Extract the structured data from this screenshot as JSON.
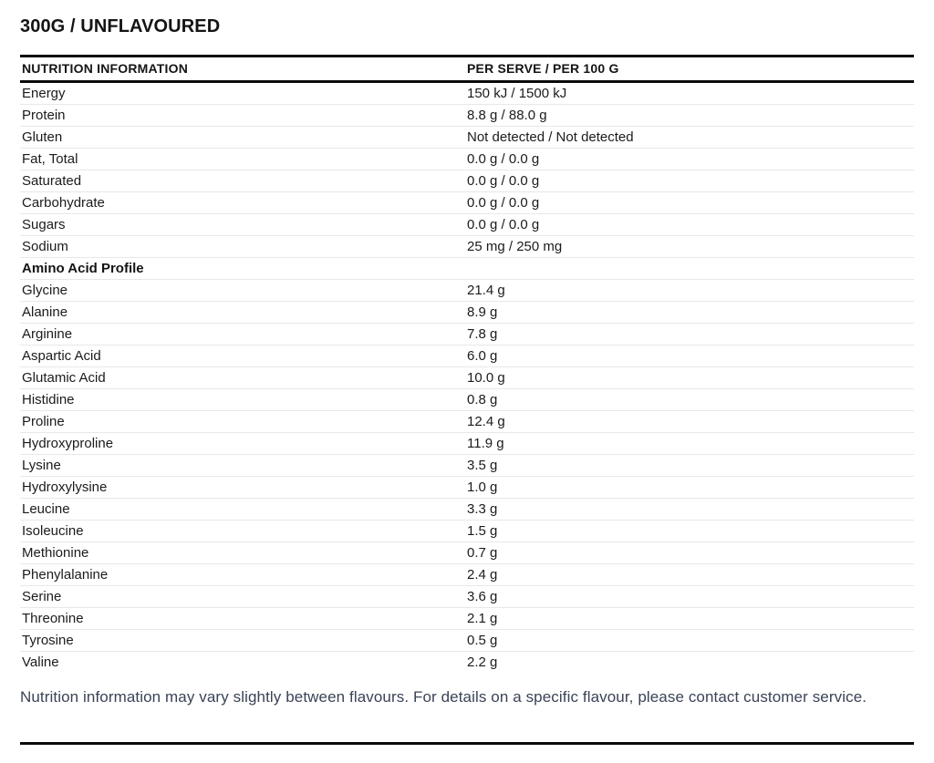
{
  "title": "300G / UNFLAVOURED",
  "table": {
    "headers": [
      "NUTRITION INFORMATION",
      "PER SERVE / PER 100 G"
    ],
    "rows": [
      {
        "label": "Energy",
        "value": "150 kJ / 1500 kJ",
        "section": false
      },
      {
        "label": "Protein",
        "value": "8.8 g / 88.0 g",
        "section": false
      },
      {
        "label": "Gluten",
        "value": "Not detected / Not detected",
        "section": false
      },
      {
        "label": "Fat, Total",
        "value": "0.0 g / 0.0 g",
        "section": false
      },
      {
        "label": "Saturated",
        "value": "0.0 g / 0.0 g",
        "section": false
      },
      {
        "label": "Carbohydrate",
        "value": "0.0 g / 0.0 g",
        "section": false
      },
      {
        "label": "Sugars",
        "value": "0.0 g / 0.0 g",
        "section": false
      },
      {
        "label": "Sodium",
        "value": "25 mg / 250 mg",
        "section": false
      },
      {
        "label": "Amino Acid Profile",
        "value": "",
        "section": true
      },
      {
        "label": "Glycine",
        "value": "21.4 g",
        "section": false
      },
      {
        "label": "Alanine",
        "value": "8.9 g",
        "section": false
      },
      {
        "label": "Arginine",
        "value": "7.8 g",
        "section": false
      },
      {
        "label": "Aspartic Acid",
        "value": "6.0 g",
        "section": false
      },
      {
        "label": "Glutamic Acid",
        "value": "10.0 g",
        "section": false
      },
      {
        "label": "Histidine",
        "value": "0.8 g",
        "section": false
      },
      {
        "label": "Proline",
        "value": "12.4 g",
        "section": false
      },
      {
        "label": "Hydroxyproline",
        "value": "11.9 g",
        "section": false
      },
      {
        "label": "Lysine",
        "value": "3.5 g",
        "section": false
      },
      {
        "label": "Hydroxylysine",
        "value": "1.0 g",
        "section": false
      },
      {
        "label": "Leucine",
        "value": "3.3 g",
        "section": false
      },
      {
        "label": "Isoleucine",
        "value": "1.5 g",
        "section": false
      },
      {
        "label": "Methionine",
        "value": "0.7 g",
        "section": false
      },
      {
        "label": "Phenylalanine",
        "value": "2.4 g",
        "section": false
      },
      {
        "label": "Serine",
        "value": "3.6 g",
        "section": false
      },
      {
        "label": "Threonine",
        "value": "2.1 g",
        "section": false
      },
      {
        "label": "Tyrosine",
        "value": "0.5 g",
        "section": false
      },
      {
        "label": "Valine",
        "value": "2.2 g",
        "section": false
      }
    ]
  },
  "footer_note": "Nutrition information may vary slightly between flavours. For details on a specific flavour, please contact customer service.",
  "colors": {
    "text": "#1b1b1d",
    "heavy_rule": "#0b0b0b",
    "row_divider": "#e6e8ec",
    "footer_text": "#3a4356"
  }
}
